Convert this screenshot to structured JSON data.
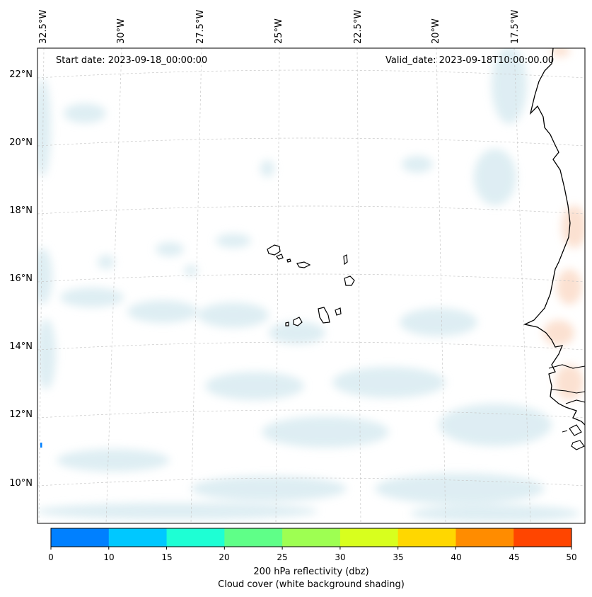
{
  "map": {
    "start_label": "Start date: 2023-09-18_00:00:00",
    "valid_label": "Valid_date: 2023-09-18T10:00:00.00",
    "longitude_labels": [
      "32.5°W",
      "30°W",
      "27.5°W",
      "25°W",
      "22.5°W",
      "20°W",
      "17.5°W"
    ],
    "latitude_labels": [
      "22°N",
      "20°N",
      "18°N",
      "16°N",
      "14°N",
      "12°N",
      "10°N"
    ],
    "features": [
      "Cape Verde islands",
      "West African coastline"
    ],
    "cloud_color": "#cfe6ee",
    "reflectivity_shade_color": "#fbdcc9",
    "coastline_color": "#000000"
  },
  "colorbar": {
    "ticks": [
      "0",
      "10",
      "15",
      "20",
      "25",
      "30",
      "35",
      "40",
      "45",
      "50"
    ],
    "colors": [
      "#0080ff",
      "#00c8ff",
      "#1effd4",
      "#5fff88",
      "#9eff52",
      "#d8ff1e",
      "#ffd700",
      "#ff8c00",
      "#ff4500"
    ],
    "label_line1": "200 hPa reflectivity (dbz)",
    "label_line2": "Cloud cover (white background shading)"
  }
}
